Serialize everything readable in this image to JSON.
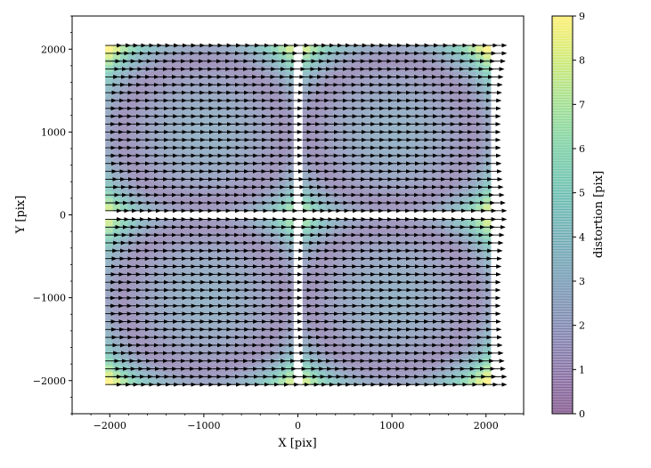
{
  "chart_data": {
    "type": "heatmap",
    "subtype": "quiver-over-filled-contour",
    "title": "",
    "xlabel": "X [pix]",
    "ylabel": "Y [pix]",
    "xlim": [
      -2400,
      2400
    ],
    "ylim": [
      -2400,
      2400
    ],
    "x_ticks": [
      -2000,
      -1000,
      0,
      1000,
      2000
    ],
    "y_ticks": [
      -2000,
      -1000,
      0,
      1000,
      2000
    ],
    "x_tick_labels": [
      "−2000",
      "−1000",
      "0",
      "1000",
      "2000"
    ],
    "y_tick_labels": [
      "−2000",
      "−1000",
      "0",
      "1000",
      "2000"
    ],
    "grid": false,
    "colormap": "viridis",
    "alpha": 0.5,
    "colorbar": {
      "label": "distortion [pix]",
      "range": [
        0,
        9
      ],
      "ticks": [
        0,
        1,
        2,
        3,
        4,
        5,
        6,
        7,
        8,
        9
      ],
      "tick_labels": [
        "0",
        "1",
        "2",
        "3",
        "4",
        "5",
        "6",
        "7",
        "8",
        "9"
      ]
    },
    "detectors": [
      {
        "x_range": [
          -2048,
          -50
        ],
        "y_range": [
          50,
          2048
        ],
        "center": [
          -1000,
          1000
        ]
      },
      {
        "x_range": [
          50,
          2048
        ],
        "y_range": [
          50,
          2048
        ],
        "center": [
          1000,
          1000
        ]
      },
      {
        "x_range": [
          -2048,
          -50
        ],
        "y_range": [
          -2048,
          -50
        ],
        "center": [
          -1000,
          -1000
        ]
      },
      {
        "x_range": [
          50,
          2048
        ],
        "y_range": [
          -2048,
          -50
        ],
        "center": [
          1000,
          -1000
        ]
      }
    ],
    "vector_grid_step": 95,
    "vector_direction": "+x",
    "distortion_levels": {
      "at_center": 3.0,
      "min_ring_radius": 840,
      "min_value": 1.2,
      "max_corner_value": 9.0
    }
  }
}
